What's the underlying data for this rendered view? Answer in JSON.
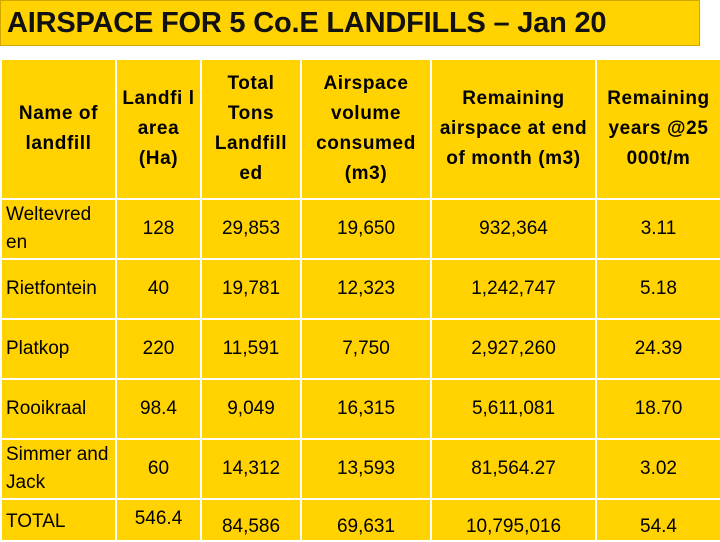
{
  "title": "AIRSPACE FOR 5 Co.E LANDFILLS – Jan 20",
  "table": {
    "headers": [
      "Name of landfill",
      "Landfi l area (Ha)",
      "Total Tons Landfill ed",
      "Airspace volume consumed (m3)",
      "Remaining airspace at end of month (m3)",
      "Remaining years @25 000t/m"
    ],
    "rows": [
      {
        "name": "Weltevred en",
        "area": "128",
        "tons": "29,853",
        "consumed": "19,650",
        "remaining": "932,364",
        "years": "3.11"
      },
      {
        "name": "Rietfontein",
        "area": "40",
        "tons": "19,781",
        "consumed": "12,323",
        "remaining": "1,242,747",
        "years": "5.18"
      },
      {
        "name": "Platkop",
        "area": "220",
        "tons": "11,591",
        "consumed": "7,750",
        "remaining": "2,927,260",
        "years": "24.39"
      },
      {
        "name": "Rooikraal",
        "area": "98.4",
        "tons": "9,049",
        "consumed": "16,315",
        "remaining": "5,611,081",
        "years": "18.70"
      },
      {
        "name": "Simmer and Jack",
        "area": "60",
        "tons": "14,312",
        "consumed": "13,593",
        "remaining": "81,564.27",
        "years": "3.02"
      }
    ],
    "total": {
      "name": "TOTAL",
      "area": "546.4",
      "tons": "84,586",
      "consumed": "69,631",
      "remaining": "10,795,016",
      "years": "54.4"
    }
  }
}
